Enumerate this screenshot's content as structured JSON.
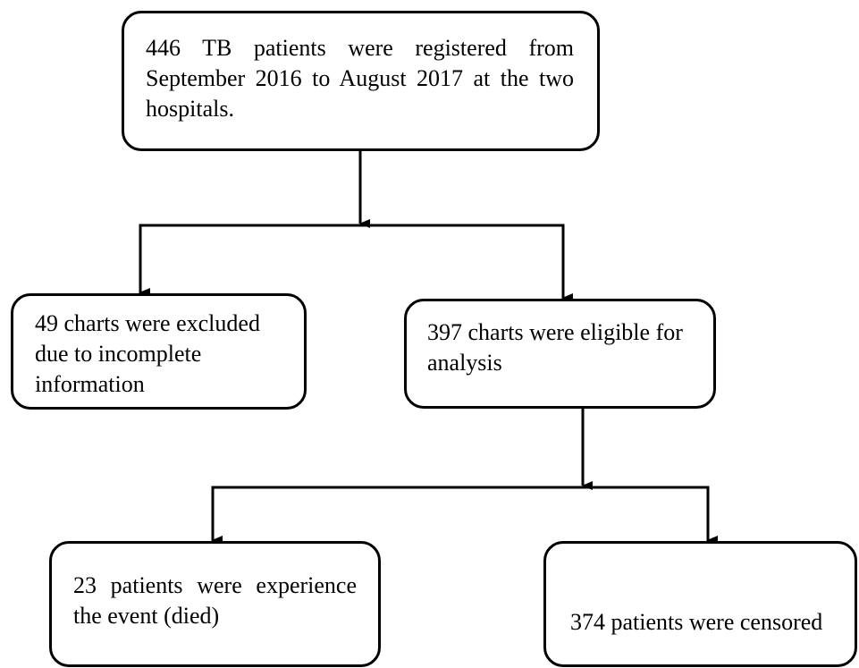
{
  "nodes": [
    {
      "label": "446 TB patients were registered from September 2016 to August 2017 at the two hospitals."
    },
    {
      "label": "49 charts were excluded due to incomplete information"
    },
    {
      "label": "397 charts were eligible for analysis"
    },
    {
      "label": "23 patients were experience the event (died)"
    },
    {
      "label": "374 patients were censored"
    }
  ]
}
